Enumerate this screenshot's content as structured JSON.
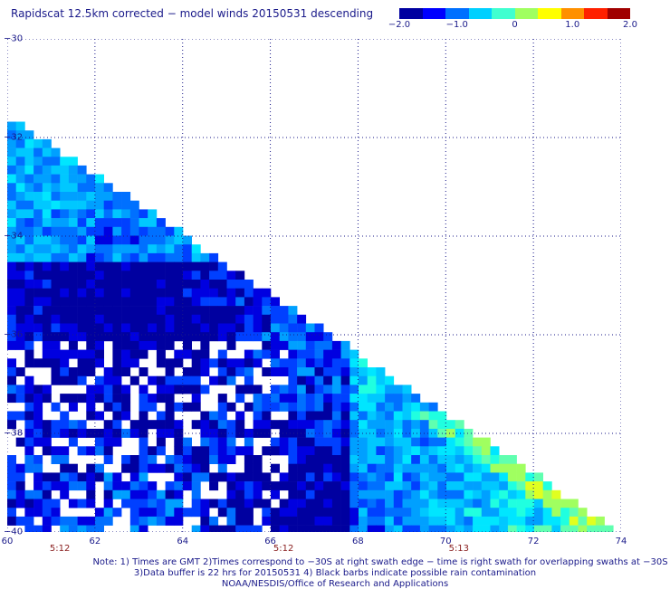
{
  "title": "Rapidscat 12.5km corrected − model winds 20150531 descending",
  "colorbar": {
    "labels": [
      "−2.0",
      "−1.0",
      "0",
      "1.0",
      "2.0"
    ],
    "label_values": [
      -2.0,
      -1.0,
      0.0,
      1.0,
      2.0
    ],
    "range": [
      -2.0,
      2.0
    ],
    "colors": [
      "#0000a0",
      "#0000ff",
      "#0070ff",
      "#00d0ff",
      "#40ffd0",
      "#a0ff60",
      "#ffff00",
      "#ff9000",
      "#ff2000",
      "#a00000"
    ]
  },
  "map": {
    "lon_range": [
      60,
      74
    ],
    "lat_range": [
      -40,
      -30
    ],
    "x_ticks": [
      "60",
      "62",
      "64",
      "66",
      "68",
      "70",
      "72",
      "74"
    ],
    "x_tick_values": [
      60,
      62,
      64,
      66,
      68,
      70,
      72,
      74
    ],
    "y_ticks": [
      "−30",
      "−32",
      "−34",
      "−36",
      "−38",
      "−40"
    ],
    "y_tick_values": [
      -30,
      -32,
      -34,
      -36,
      -38,
      -40
    ],
    "grid_lines": "dotted",
    "swath_edge": {
      "start_lon": 60.0,
      "start_lat": -31.5,
      "end_lon": 74.0,
      "end_lat": -40.0
    }
  },
  "times": [
    {
      "label": "5:12",
      "lon": 61.2
    },
    {
      "label": "5:12",
      "lon": 66.3
    },
    {
      "label": "5:13",
      "lon": 70.3
    }
  ],
  "notes": [
    "Note: 1) Times are GMT 2)Times correspond to −30S at right swath edge − time is right swath for overlapping swaths at −30S",
    "3)Data buffer is 22 hrs for 20150531 4) Black barbs indicate possible rain contamination",
    "NOAA/NESDIS/Office of Research and Applications"
  ]
}
